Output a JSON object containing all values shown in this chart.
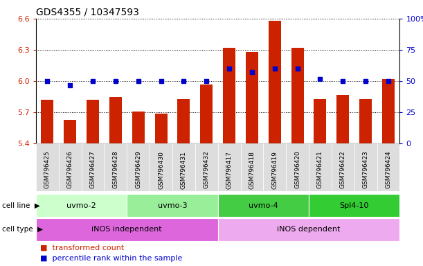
{
  "title": "GDS4355 / 10347593",
  "samples": [
    "GSM796425",
    "GSM796426",
    "GSM796427",
    "GSM796428",
    "GSM796429",
    "GSM796430",
    "GSM796431",
    "GSM796432",
    "GSM796417",
    "GSM796418",
    "GSM796419",
    "GSM796420",
    "GSM796421",
    "GSM796422",
    "GSM796423",
    "GSM796424"
  ],
  "bar_values": [
    5.82,
    5.63,
    5.82,
    5.85,
    5.71,
    5.69,
    5.83,
    5.97,
    6.32,
    6.28,
    6.58,
    6.32,
    5.83,
    5.87,
    5.83,
    6.02
  ],
  "dot_values": [
    50,
    47,
    50,
    50,
    50,
    50,
    50,
    50,
    60,
    57,
    60,
    60,
    52,
    50,
    50,
    50
  ],
  "ylim": [
    5.4,
    6.6
  ],
  "y2lim": [
    0,
    100
  ],
  "yticks": [
    5.4,
    5.7,
    6.0,
    6.3,
    6.6
  ],
  "y2ticks": [
    0,
    25,
    50,
    75,
    100
  ],
  "y2ticklabels": [
    "0",
    "25",
    "50",
    "75",
    "100%"
  ],
  "bar_color": "#cc2200",
  "dot_color": "#0000cc",
  "cell_lines": [
    {
      "label": "uvmo-2",
      "start": 0,
      "end": 4,
      "color": "#ccffcc"
    },
    {
      "label": "uvmo-3",
      "start": 4,
      "end": 8,
      "color": "#99ee99"
    },
    {
      "label": "uvmo-4",
      "start": 8,
      "end": 12,
      "color": "#44cc44"
    },
    {
      "label": "Spl4-10",
      "start": 12,
      "end": 16,
      "color": "#33cc33"
    }
  ],
  "cell_types": [
    {
      "label": "iNOS independent",
      "start": 0,
      "end": 8,
      "color": "#dd66dd"
    },
    {
      "label": "iNOS dependent",
      "start": 8,
      "end": 16,
      "color": "#eeaaee"
    }
  ],
  "title_fontsize": 10,
  "bar_width": 0.55,
  "ytick_color": "#cc2200",
  "y2tick_color": "#0000cc",
  "ytick_fontsize": 8,
  "y2tick_fontsize": 8,
  "sample_label_fontsize": 6.5,
  "cell_label_fontsize": 8,
  "legend_fontsize": 8
}
